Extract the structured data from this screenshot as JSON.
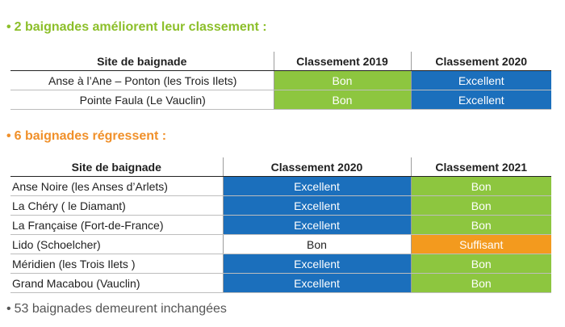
{
  "section1": {
    "bullet": "•",
    "title": "2 baignades améliorent leur classement :",
    "headers": [
      "Site de baignade",
      "Classement 2019",
      "Classement 2020"
    ],
    "rows": [
      {
        "site": "Anse à l’Ane – Ponton (les Trois Ilets)",
        "c1": "Bon",
        "c2": "Excellent"
      },
      {
        "site": "Pointe Faula (Le Vauclin)",
        "c1": "Bon",
        "c2": "Excellent"
      }
    ]
  },
  "section2": {
    "bullet": "•",
    "title": "6  baignades régressent :",
    "headers": [
      "Site de baignade",
      "Classement 2020",
      "Classement 2021"
    ],
    "rows": [
      {
        "site": "Anse Noire (les Anses d’Arlets)",
        "c1": "Excellent",
        "c2": "Bon"
      },
      {
        "site": "La Chéry ( le Diamant)",
        "c1": "Excellent",
        "c2": "Bon"
      },
      {
        "site": "La Française (Fort-de-France)",
        "c1": "Excellent",
        "c2": "Bon"
      },
      {
        "site": "Lido (Schoelcher)",
        "c1": "Bon",
        "c2": "Suffisant"
      },
      {
        "site": "Méridien (les Trois Ilets )",
        "c1": "Excellent",
        "c2": "Bon"
      },
      {
        "site": "Grand Macabou (Vauclin)",
        "c1": "Excellent",
        "c2": "Bon"
      }
    ]
  },
  "footer": {
    "bullet": "•",
    "text": "53 baignades demeurent inchangées"
  },
  "colors": {
    "Bon": "#8dc63f",
    "Excellent": "#1b6fbc",
    "Suffisant": "#f39a1e",
    "section1_heading": "#8cbf2a",
    "section2_heading": "#f0902a"
  }
}
